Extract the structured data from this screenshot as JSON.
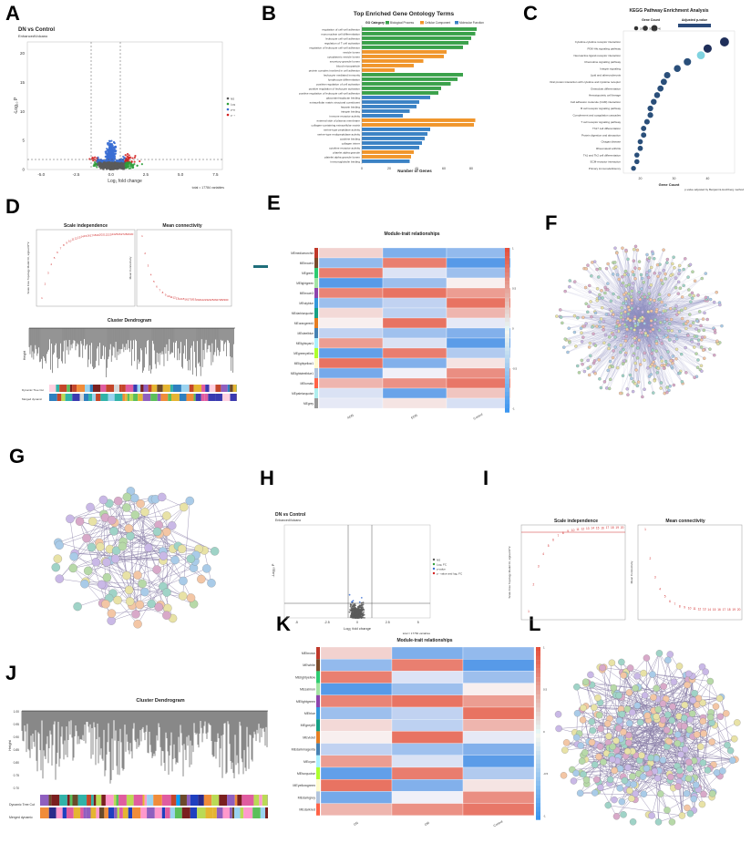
{
  "labels": {
    "a": "A",
    "b": "B",
    "c": "C",
    "d": "D",
    "e": "E",
    "f": "F",
    "g": "G",
    "h": "H",
    "i": "I",
    "j": "J",
    "k": "K",
    "l": "L"
  },
  "panelA": {
    "title": "DN vs Control",
    "subtitle": "EnhancedVolcano",
    "xlabel": "Log₂ fold change",
    "ylabel": "-Log₁₀ P",
    "xticks": [
      "-5.0",
      "-2.5",
      "0.0",
      "2.5",
      "5.0",
      "7.5"
    ],
    "yticks": [
      "0",
      "5",
      "10",
      "15",
      "20"
    ],
    "legend": [
      "NS",
      "Log₂ FC",
      "p-value",
      "p - value and log₂ FC"
    ],
    "footer": "total = 17784 variables"
  },
  "panelB": {
    "title": "Top Enriched Gene Ontology Terms",
    "legend_title": "GO Category",
    "legend": [
      "Biological Process",
      "Cellular Component",
      "Molecular Function"
    ],
    "xlabel": "Number of Genes",
    "xticks": [
      "0",
      "20",
      "40",
      "60",
      "80"
    ],
    "terms": [
      "regulation of cell-cell adhesion",
      "mononuclear cell differentiation",
      "leukocyte cell-cell adhesion",
      "regulation of T cell activation",
      "regulation of leukocyte cell-cell adhesion",
      "vesicle lumen",
      "cytoplasmic vesicle lumen",
      "secretory granule lumen",
      "blood microparticle",
      "protein complex involved in cell adhesion",
      "leukocyte mediated immunity",
      "lymphocyte differentiation",
      "positive regulation of cell activation",
      "positive regulation of leukocyte activation",
      "positive regulation of leukocyte cell-cell adhesion",
      "glycosaminoglycan binding",
      "extracellular matrix structural constituent",
      "heparin binding",
      "integrin binding",
      "immune receptor activity",
      "external side of plasma membrane",
      "collagen-containing extracellular matrix",
      "serine-type peptidase activity",
      "serine-type endopeptidase activity",
      "cytokine binding",
      "collagen trimer",
      "cytokine receptor activity",
      "platelet alpha granule",
      "platelet alpha granule lumen",
      "immunoglobulin binding"
    ]
  },
  "panelC": {
    "title": "KEGG Pathway Enrichment Analysis",
    "size_legend": "Gene Count",
    "color_legend": "Adjusted p-value",
    "size_ticks": [
      "20",
      "30",
      "40"
    ],
    "xlabel": "Gene Count",
    "xticks": [
      "20",
      "30",
      "40"
    ],
    "footer": "p-value adjusted by Benjamini-Hochberg method",
    "pathways": [
      "Cytokine-cytokine receptor interaction",
      "PI3K-Akt signaling pathway",
      "Neuroactive ligand-receptor interaction",
      "Chemokine signaling pathway",
      "Integrin signaling",
      "Lipid and atherosclerosis",
      "Viral protein interaction with cytokine and cytokine receptor",
      "Osteoclast differentiation",
      "Hematopoietic cell lineage",
      "Cell adhesion molecule (CAM) interaction",
      "B cell receptor signaling pathway",
      "Complement and coagulation cascades",
      "T cell receptor signaling pathway",
      "Th17 cell differentiation",
      "Protein digestion and absorption",
      "Chagas disease",
      "Rheumatoid arthritis",
      "Th1 and Th2 cell differentiation",
      "ECM-receptor interaction",
      "Primary immunodeficiency"
    ]
  },
  "panelD": {
    "si_title": "Scale independence",
    "mc_title": "Mean connectivity",
    "si_ylabel": "Scale Free Topology Model Fit, signed R^2",
    "mc_ylabel": "Mean Connectivity",
    "dendro_title": "Cluster Dendrogram",
    "dendro_ylabel": "Height",
    "row1": "Dynamic Tree Cut",
    "row2": "Merged dynamic"
  },
  "panelE": {
    "title": "Module-trait relationships",
    "modules": [
      "MEmediumorchid",
      "MEbrown4",
      "MEgreen",
      "MElightgreen",
      "MEbrown3",
      "MEskyblue",
      "MEdarkturquoise",
      "MEorangered4",
      "MEsteelblue",
      "MElightcyan1",
      "MEgreenyellow",
      "MElightyellow1",
      "MElightsteelblue1",
      "MEtomato",
      "MEpaleturquoise",
      "MEgrey"
    ],
    "traits": [
      "ADN",
      "EDN",
      "Control"
    ],
    "scale_ticks": [
      "1",
      "0.5",
      "0",
      "-0.5",
      "-1"
    ]
  },
  "panelH": {
    "title": "DN vs Control",
    "subtitle": "EnhancedVolcano",
    "xlabel": "Log₂ fold change",
    "ylabel": "-Log₁₀ P",
    "xticks": [
      "-5",
      "-2.5",
      "0",
      "2.5",
      "5"
    ],
    "legend": [
      "NS",
      "Log₂ FC",
      "p-value",
      "p - value and log₂ FC"
    ],
    "footer": "total = 17784 variables"
  },
  "panelI": {
    "si_title": "Scale independence",
    "mc_title": "Mean connectivity",
    "si_ylabel": "Scale Free Topology Model Fit, signed R^2",
    "mc_ylabel": "Mean Connectivity"
  },
  "panelJ": {
    "title": "Cluster Dendrogram",
    "ylabel": "Height",
    "yticks": [
      "0.70",
      "0.75",
      "0.80",
      "0.85",
      "0.90",
      "0.95",
      "1.00"
    ],
    "row1": "Dynamic Tree Cut",
    "row2": "Merged dynamic"
  },
  "panelK": {
    "title": "Module-trait relationships",
    "modules": [
      "MEbrown",
      "MEwhite",
      "MElightyellow",
      "MEsalmon",
      "MElightgreen",
      "MEblue",
      "MEgrey60",
      "MEviolet",
      "MEdarkmagenta",
      "MEcyan",
      "MEturquoise",
      "MEyellowgreen",
      "MEdarkgrey",
      "MEdarkred"
    ],
    "traits": [
      "DN",
      "DM",
      "Control"
    ],
    "scale_ticks": [
      "1",
      "0.5",
      "0",
      "-0.5",
      "-1"
    ]
  },
  "chart_data": [
    {
      "id": "A",
      "type": "scatter",
      "title": "DN vs Control",
      "xlabel": "Log₂ fold change",
      "ylabel": "-Log₁₀ P",
      "xlim": [
        -6,
        8
      ],
      "ylim": [
        0,
        22
      ]
    },
    {
      "id": "B",
      "type": "bar",
      "title": "Top Enriched Gene Ontology Terms",
      "xlabel": "Number of Genes",
      "values": [
        84,
        83,
        80,
        78,
        74,
        62,
        60,
        45,
        38,
        24,
        74,
        70,
        65,
        58,
        56,
        50,
        42,
        40,
        35,
        30,
        83,
        82,
        50,
        48,
        46,
        44,
        42,
        38,
        36,
        35
      ],
      "categories_of": [
        "Biological Process",
        "Biological Process",
        "Biological Process",
        "Biological Process",
        "Biological Process",
        "Cellular Component",
        "Cellular Component",
        "Cellular Component",
        "Cellular Component",
        "Cellular Component",
        "Biological Process",
        "Biological Process",
        "Biological Process",
        "Biological Process",
        "Biological Process",
        "Molecular Function",
        "Molecular Function",
        "Molecular Function",
        "Molecular Function",
        "Molecular Function",
        "Cellular Component",
        "Cellular Component",
        "Molecular Function",
        "Molecular Function",
        "Molecular Function",
        "Molecular Function",
        "Molecular Function",
        "Cellular Component",
        "Cellular Component",
        "Molecular Function"
      ]
    },
    {
      "id": "C",
      "type": "scatter",
      "title": "KEGG Pathway Enrichment Analysis",
      "xlabel": "Gene Count",
      "values": [
        45,
        40,
        38,
        34,
        31,
        28,
        27,
        26,
        25,
        24,
        23,
        23,
        22,
        21,
        21,
        20,
        20,
        19,
        19,
        18
      ]
    },
    {
      "id": "E",
      "type": "heatmap",
      "title": "Module-trait relationships"
    },
    {
      "id": "H",
      "type": "scatter",
      "title": "DN vs Control"
    },
    {
      "id": "J",
      "type": "bar",
      "title": "Cluster Dendrogram"
    },
    {
      "id": "K",
      "type": "heatmap",
      "title": "Module-trait relationships"
    }
  ],
  "colors": {
    "bp": "#3aa14a",
    "cc": "#f0962c",
    "mf": "#3b82c4",
    "ns": "#5a5a5a",
    "fc": "#2e9e3b",
    "pv": "#3b6fd4",
    "both": "#d42020"
  }
}
